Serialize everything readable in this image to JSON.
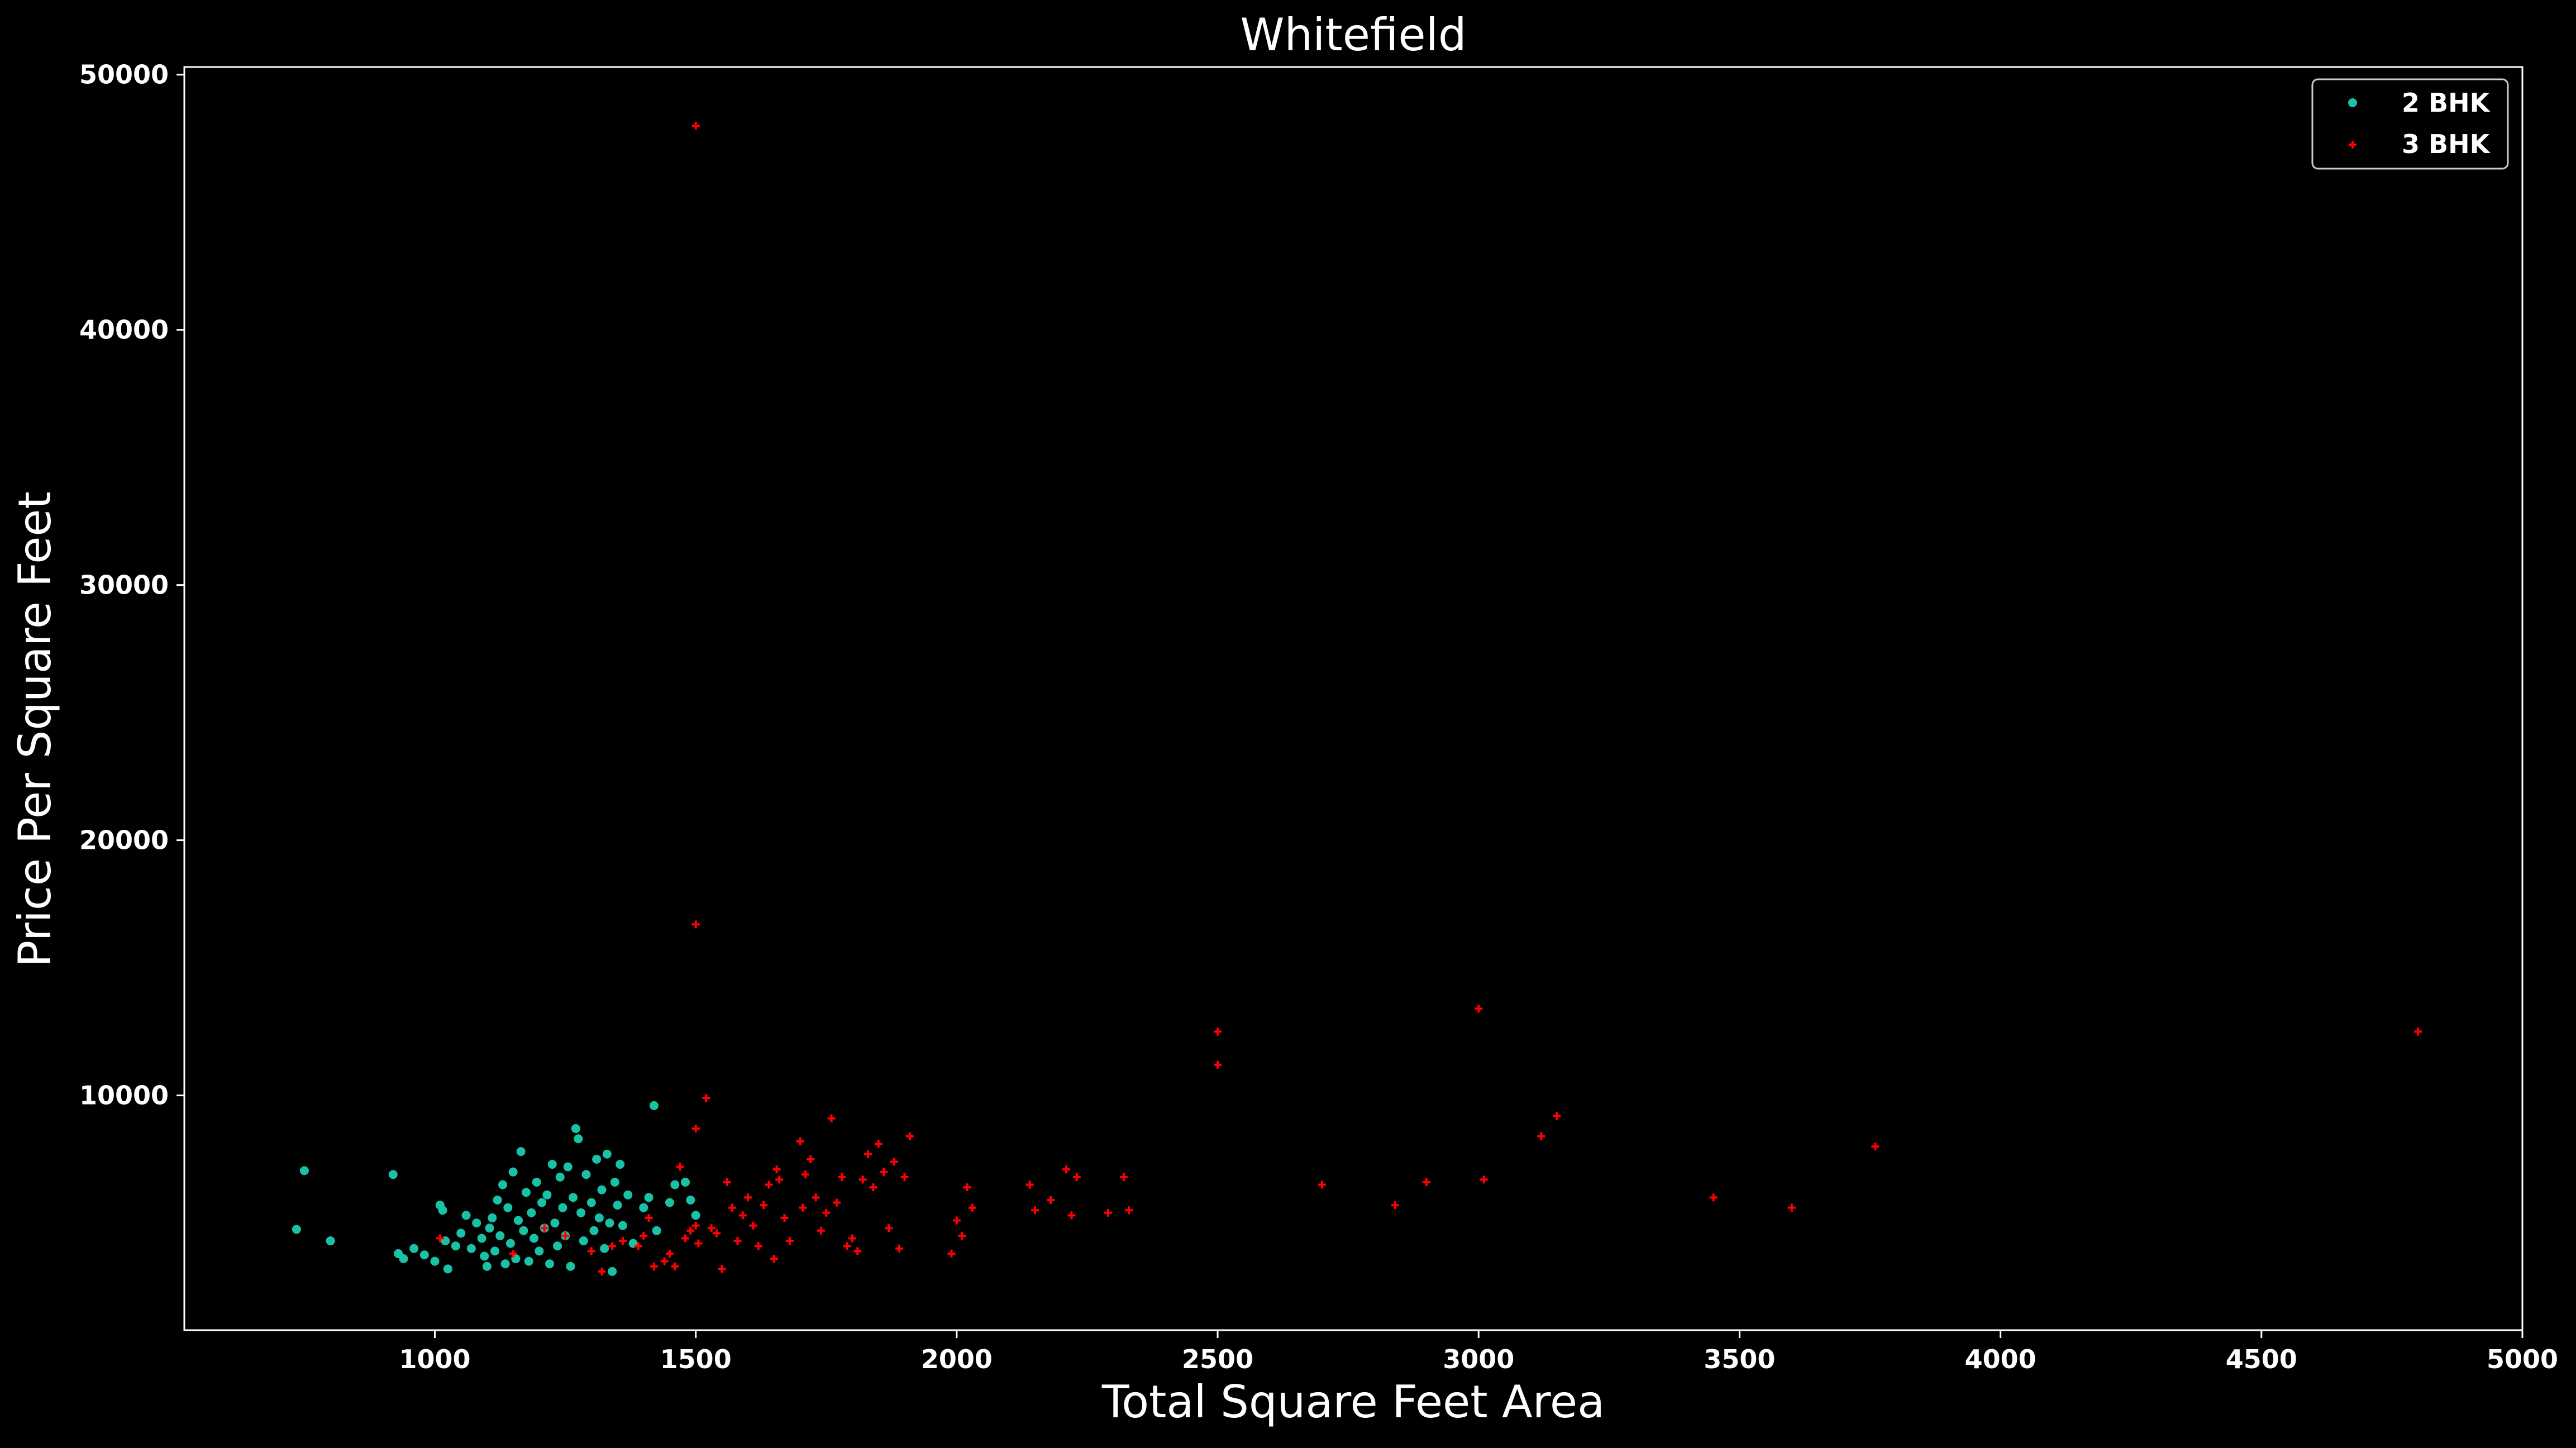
{
  "colors": {
    "background": "#000000",
    "axes": "#ffffff",
    "text": "#ffffff",
    "2bhk": "#19c2a6",
    "3bhk": "#ff0000"
  },
  "chart_data": {
    "type": "scatter",
    "title": "Whitefield",
    "xlabel": "Total Square Feet Area",
    "ylabel": "Price Per Square Feet",
    "xlim": [
      520,
      5000
    ],
    "ylim": [
      800,
      50300
    ],
    "xticks": [
      1000,
      1500,
      2000,
      2500,
      3000,
      3500,
      4000,
      4500,
      5000
    ],
    "yticks": [
      10000,
      20000,
      30000,
      40000,
      50000
    ],
    "grid": false,
    "legend_position": "top-right",
    "series": [
      {
        "name": "2 BHK",
        "marker": "circle",
        "color": "#19c2a6",
        "points": [
          [
            735,
            4750
          ],
          [
            750,
            7050
          ],
          [
            800,
            4300
          ],
          [
            920,
            6900
          ],
          [
            930,
            3800
          ],
          [
            940,
            3600
          ],
          [
            960,
            4000
          ],
          [
            980,
            3750
          ],
          [
            1000,
            3500
          ],
          [
            1010,
            5700
          ],
          [
            1015,
            5500
          ],
          [
            1020,
            4300
          ],
          [
            1025,
            3200
          ],
          [
            1040,
            4100
          ],
          [
            1050,
            4600
          ],
          [
            1060,
            5300
          ],
          [
            1070,
            4000
          ],
          [
            1080,
            5000
          ],
          [
            1090,
            4400
          ],
          [
            1095,
            3700
          ],
          [
            1100,
            3300
          ],
          [
            1105,
            4800
          ],
          [
            1110,
            5200
          ],
          [
            1115,
            3900
          ],
          [
            1120,
            5900
          ],
          [
            1125,
            4500
          ],
          [
            1130,
            6500
          ],
          [
            1135,
            3400
          ],
          [
            1140,
            5600
          ],
          [
            1145,
            4200
          ],
          [
            1150,
            7000
          ],
          [
            1155,
            3600
          ],
          [
            1160,
            5100
          ],
          [
            1165,
            7800
          ],
          [
            1170,
            4700
          ],
          [
            1175,
            6200
          ],
          [
            1180,
            3500
          ],
          [
            1185,
            5400
          ],
          [
            1190,
            4400
          ],
          [
            1195,
            6600
          ],
          [
            1200,
            3900
          ],
          [
            1205,
            5800
          ],
          [
            1210,
            4800
          ],
          [
            1215,
            6100
          ],
          [
            1220,
            3400
          ],
          [
            1225,
            7300
          ],
          [
            1230,
            5000
          ],
          [
            1235,
            4100
          ],
          [
            1240,
            6800
          ],
          [
            1245,
            5600
          ],
          [
            1250,
            4500
          ],
          [
            1255,
            7200
          ],
          [
            1260,
            3300
          ],
          [
            1265,
            6000
          ],
          [
            1270,
            8700
          ],
          [
            1275,
            8300
          ],
          [
            1280,
            5400
          ],
          [
            1285,
            4300
          ],
          [
            1290,
            6900
          ],
          [
            1300,
            5800
          ],
          [
            1305,
            4700
          ],
          [
            1310,
            7500
          ],
          [
            1315,
            5200
          ],
          [
            1320,
            6300
          ],
          [
            1325,
            4000
          ],
          [
            1330,
            7700
          ],
          [
            1335,
            5000
          ],
          [
            1340,
            3100
          ],
          [
            1345,
            6600
          ],
          [
            1350,
            5700
          ],
          [
            1355,
            7300
          ],
          [
            1360,
            4900
          ],
          [
            1370,
            6100
          ],
          [
            1380,
            4200
          ],
          [
            1400,
            5600
          ],
          [
            1410,
            6000
          ],
          [
            1420,
            9600
          ],
          [
            1425,
            4700
          ],
          [
            1450,
            5800
          ],
          [
            1460,
            6500
          ],
          [
            1480,
            6600
          ],
          [
            1490,
            5900
          ],
          [
            1500,
            5300
          ]
        ]
      },
      {
        "name": "3 BHK",
        "marker": "plus",
        "color": "#ff0000",
        "points": [
          [
            1010,
            4400
          ],
          [
            1150,
            3800
          ],
          [
            1210,
            4800
          ],
          [
            1250,
            4500
          ],
          [
            1300,
            3900
          ],
          [
            1320,
            3100
          ],
          [
            1340,
            4100
          ],
          [
            1360,
            4300
          ],
          [
            1390,
            4100
          ],
          [
            1400,
            4500
          ],
          [
            1410,
            5200
          ],
          [
            1420,
            3300
          ],
          [
            1440,
            3500
          ],
          [
            1450,
            3800
          ],
          [
            1460,
            3300
          ],
          [
            1470,
            7200
          ],
          [
            1480,
            4400
          ],
          [
            1490,
            4700
          ],
          [
            1500,
            48000
          ],
          [
            1500,
            16700
          ],
          [
            1500,
            8700
          ],
          [
            1500,
            4900
          ],
          [
            1505,
            4200
          ],
          [
            1520,
            9900
          ],
          [
            1530,
            4800
          ],
          [
            1540,
            4600
          ],
          [
            1550,
            3200
          ],
          [
            1560,
            6600
          ],
          [
            1570,
            5600
          ],
          [
            1580,
            4300
          ],
          [
            1590,
            5300
          ],
          [
            1600,
            6000
          ],
          [
            1610,
            4900
          ],
          [
            1620,
            4100
          ],
          [
            1630,
            5700
          ],
          [
            1640,
            6500
          ],
          [
            1650,
            3600
          ],
          [
            1655,
            7100
          ],
          [
            1660,
            6700
          ],
          [
            1670,
            5200
          ],
          [
            1680,
            4300
          ],
          [
            1700,
            8200
          ],
          [
            1705,
            5600
          ],
          [
            1710,
            6900
          ],
          [
            1720,
            7500
          ],
          [
            1730,
            6000
          ],
          [
            1740,
            4700
          ],
          [
            1750,
            5400
          ],
          [
            1760,
            9100
          ],
          [
            1770,
            5800
          ],
          [
            1780,
            6800
          ],
          [
            1790,
            4100
          ],
          [
            1800,
            4400
          ],
          [
            1810,
            3900
          ],
          [
            1820,
            6700
          ],
          [
            1830,
            7700
          ],
          [
            1840,
            6400
          ],
          [
            1850,
            8100
          ],
          [
            1860,
            7000
          ],
          [
            1870,
            4800
          ],
          [
            1880,
            7400
          ],
          [
            1890,
            4000
          ],
          [
            1900,
            6800
          ],
          [
            1910,
            8400
          ],
          [
            1990,
            3800
          ],
          [
            2000,
            5100
          ],
          [
            2010,
            4500
          ],
          [
            2020,
            6400
          ],
          [
            2030,
            5600
          ],
          [
            2140,
            6500
          ],
          [
            2150,
            5500
          ],
          [
            2180,
            5900
          ],
          [
            2210,
            7100
          ],
          [
            2220,
            5300
          ],
          [
            2230,
            6800
          ],
          [
            2290,
            5400
          ],
          [
            2320,
            6800
          ],
          [
            2330,
            5500
          ],
          [
            2500,
            12500
          ],
          [
            2500,
            11200
          ],
          [
            2700,
            6500
          ],
          [
            2840,
            5700
          ],
          [
            2900,
            6600
          ],
          [
            3000,
            13400
          ],
          [
            3010,
            6700
          ],
          [
            3120,
            8400
          ],
          [
            3150,
            9200
          ],
          [
            3450,
            6000
          ],
          [
            3600,
            5600
          ],
          [
            3760,
            8000
          ],
          [
            4800,
            12500
          ]
        ]
      }
    ]
  }
}
